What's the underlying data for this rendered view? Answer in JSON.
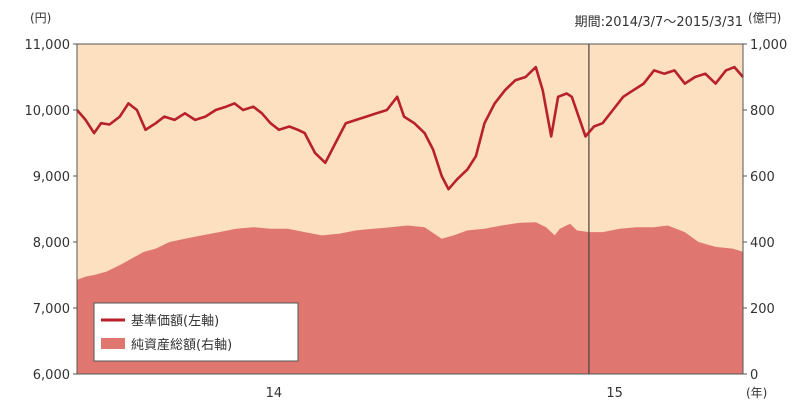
{
  "chart_data": {
    "type": "line+area",
    "period_label": "期間:2014/3/7〜2015/3/31",
    "left_unit": "(円)",
    "right_unit": "(億円)",
    "x_unit": "(年)",
    "x_ticks": [
      {
        "label": "14",
        "date": "2014-06-30"
      },
      {
        "label": "15",
        "date": "2015-01-15"
      }
    ],
    "y_left": {
      "min": 6000,
      "max": 11000,
      "ticks": [
        "6,000",
        "7,000",
        "8,000",
        "9,000",
        "10,000",
        "11,000"
      ]
    },
    "y_right": {
      "min": 0,
      "max": 1000,
      "ticks": [
        "0",
        "200",
        "400",
        "600",
        "800",
        "1,000"
      ]
    },
    "x_range": [
      "2014-03-07",
      "2015-03-31"
    ],
    "marker_date": "2014-12-31",
    "legend": {
      "position": "bottom-left",
      "items": [
        {
          "label": "基準価額(左軸)",
          "kind": "line"
        },
        {
          "label": "純資産総額(右軸)",
          "kind": "area"
        }
      ]
    },
    "colors": {
      "background": "#fde0bf",
      "area": "#e07670",
      "line": "#b8212b",
      "frame": "#555555",
      "marker": "#444444"
    },
    "series": [
      {
        "name": "基準価額(左軸)",
        "axis": "left",
        "points": [
          [
            "2014-03-07",
            10000
          ],
          [
            "2014-03-12",
            9850
          ],
          [
            "2014-03-17",
            9650
          ],
          [
            "2014-03-21",
            9800
          ],
          [
            "2014-03-26",
            9780
          ],
          [
            "2014-04-01",
            9900
          ],
          [
            "2014-04-06",
            10100
          ],
          [
            "2014-04-11",
            10000
          ],
          [
            "2014-04-16",
            9700
          ],
          [
            "2014-04-22",
            9800
          ],
          [
            "2014-04-27",
            9900
          ],
          [
            "2014-05-03",
            9850
          ],
          [
            "2014-05-09",
            9950
          ],
          [
            "2014-05-15",
            9850
          ],
          [
            "2014-05-21",
            9900
          ],
          [
            "2014-05-27",
            10000
          ],
          [
            "2014-06-02",
            10050
          ],
          [
            "2014-06-07",
            10100
          ],
          [
            "2014-06-12",
            10000
          ],
          [
            "2014-06-18",
            10050
          ],
          [
            "2014-06-23",
            9950
          ],
          [
            "2014-06-28",
            9800
          ],
          [
            "2014-07-03",
            9700
          ],
          [
            "2014-07-09",
            9750
          ],
          [
            "2014-07-14",
            9700
          ],
          [
            "2014-07-18",
            9650
          ],
          [
            "2014-07-24",
            9350
          ],
          [
            "2014-07-30",
            9200
          ],
          [
            "2014-08-05",
            9500
          ],
          [
            "2014-08-11",
            9800
          ],
          [
            "2014-08-17",
            9850
          ],
          [
            "2014-08-23",
            9900
          ],
          [
            "2014-08-29",
            9950
          ],
          [
            "2014-09-04",
            10000
          ],
          [
            "2014-09-10",
            10200
          ],
          [
            "2014-09-14",
            9900
          ],
          [
            "2014-09-20",
            9800
          ],
          [
            "2014-09-26",
            9650
          ],
          [
            "2014-10-01",
            9400
          ],
          [
            "2014-10-06",
            9000
          ],
          [
            "2014-10-10",
            8800
          ],
          [
            "2014-10-15",
            8950
          ],
          [
            "2014-10-21",
            9100
          ],
          [
            "2014-10-26",
            9300
          ],
          [
            "2014-10-31",
            9800
          ],
          [
            "2014-11-06",
            10100
          ],
          [
            "2014-11-12",
            10300
          ],
          [
            "2014-11-18",
            10450
          ],
          [
            "2014-11-24",
            10500
          ],
          [
            "2014-11-30",
            10650
          ],
          [
            "2014-12-04",
            10300
          ],
          [
            "2014-12-09",
            9600
          ],
          [
            "2014-12-13",
            10200
          ],
          [
            "2014-12-18",
            10250
          ],
          [
            "2014-12-21",
            10200
          ],
          [
            "2014-12-29",
            9600
          ],
          [
            "2015-01-03",
            9750
          ],
          [
            "2015-01-08",
            9800
          ],
          [
            "2015-01-14",
            10000
          ],
          [
            "2015-01-20",
            10200
          ],
          [
            "2015-01-26",
            10300
          ],
          [
            "2015-02-01",
            10400
          ],
          [
            "2015-02-07",
            10600
          ],
          [
            "2015-02-13",
            10550
          ],
          [
            "2015-02-19",
            10600
          ],
          [
            "2015-02-25",
            10400
          ],
          [
            "2015-03-03",
            10500
          ],
          [
            "2015-03-09",
            10550
          ],
          [
            "2015-03-15",
            10400
          ],
          [
            "2015-03-21",
            10600
          ],
          [
            "2015-03-26",
            10650
          ],
          [
            "2015-03-31",
            10500
          ]
        ]
      },
      {
        "name": "純資産総額(右軸)",
        "axis": "right",
        "points": [
          [
            "2014-03-07",
            285
          ],
          [
            "2014-03-12",
            295
          ],
          [
            "2014-03-17",
            300
          ],
          [
            "2014-03-24",
            310
          ],
          [
            "2014-04-01",
            330
          ],
          [
            "2014-04-08",
            350
          ],
          [
            "2014-04-15",
            370
          ],
          [
            "2014-04-22",
            380
          ],
          [
            "2014-04-30",
            400
          ],
          [
            "2014-05-09",
            410
          ],
          [
            "2014-05-19",
            420
          ],
          [
            "2014-05-29",
            430
          ],
          [
            "2014-06-08",
            440
          ],
          [
            "2014-06-18",
            445
          ],
          [
            "2014-06-28",
            440
          ],
          [
            "2014-07-08",
            440
          ],
          [
            "2014-07-18",
            430
          ],
          [
            "2014-07-28",
            420
          ],
          [
            "2014-08-07",
            425
          ],
          [
            "2014-08-17",
            435
          ],
          [
            "2014-08-27",
            440
          ],
          [
            "2014-09-06",
            445
          ],
          [
            "2014-09-16",
            450
          ],
          [
            "2014-09-26",
            445
          ],
          [
            "2014-10-06",
            410
          ],
          [
            "2014-10-13",
            420
          ],
          [
            "2014-10-21",
            435
          ],
          [
            "2014-10-31",
            440
          ],
          [
            "2014-11-10",
            450
          ],
          [
            "2014-11-20",
            458
          ],
          [
            "2014-11-30",
            460
          ],
          [
            "2014-12-06",
            445
          ],
          [
            "2014-12-11",
            420
          ],
          [
            "2014-12-14",
            440
          ],
          [
            "2014-12-20",
            455
          ],
          [
            "2014-12-24",
            435
          ],
          [
            "2014-12-31",
            430
          ],
          [
            "2015-01-08",
            430
          ],
          [
            "2015-01-18",
            440
          ],
          [
            "2015-01-28",
            445
          ],
          [
            "2015-02-07",
            445
          ],
          [
            "2015-02-15",
            450
          ],
          [
            "2015-02-25",
            430
          ],
          [
            "2015-03-05",
            400
          ],
          [
            "2015-03-15",
            385
          ],
          [
            "2015-03-25",
            380
          ],
          [
            "2015-03-31",
            370
          ]
        ]
      }
    ]
  }
}
